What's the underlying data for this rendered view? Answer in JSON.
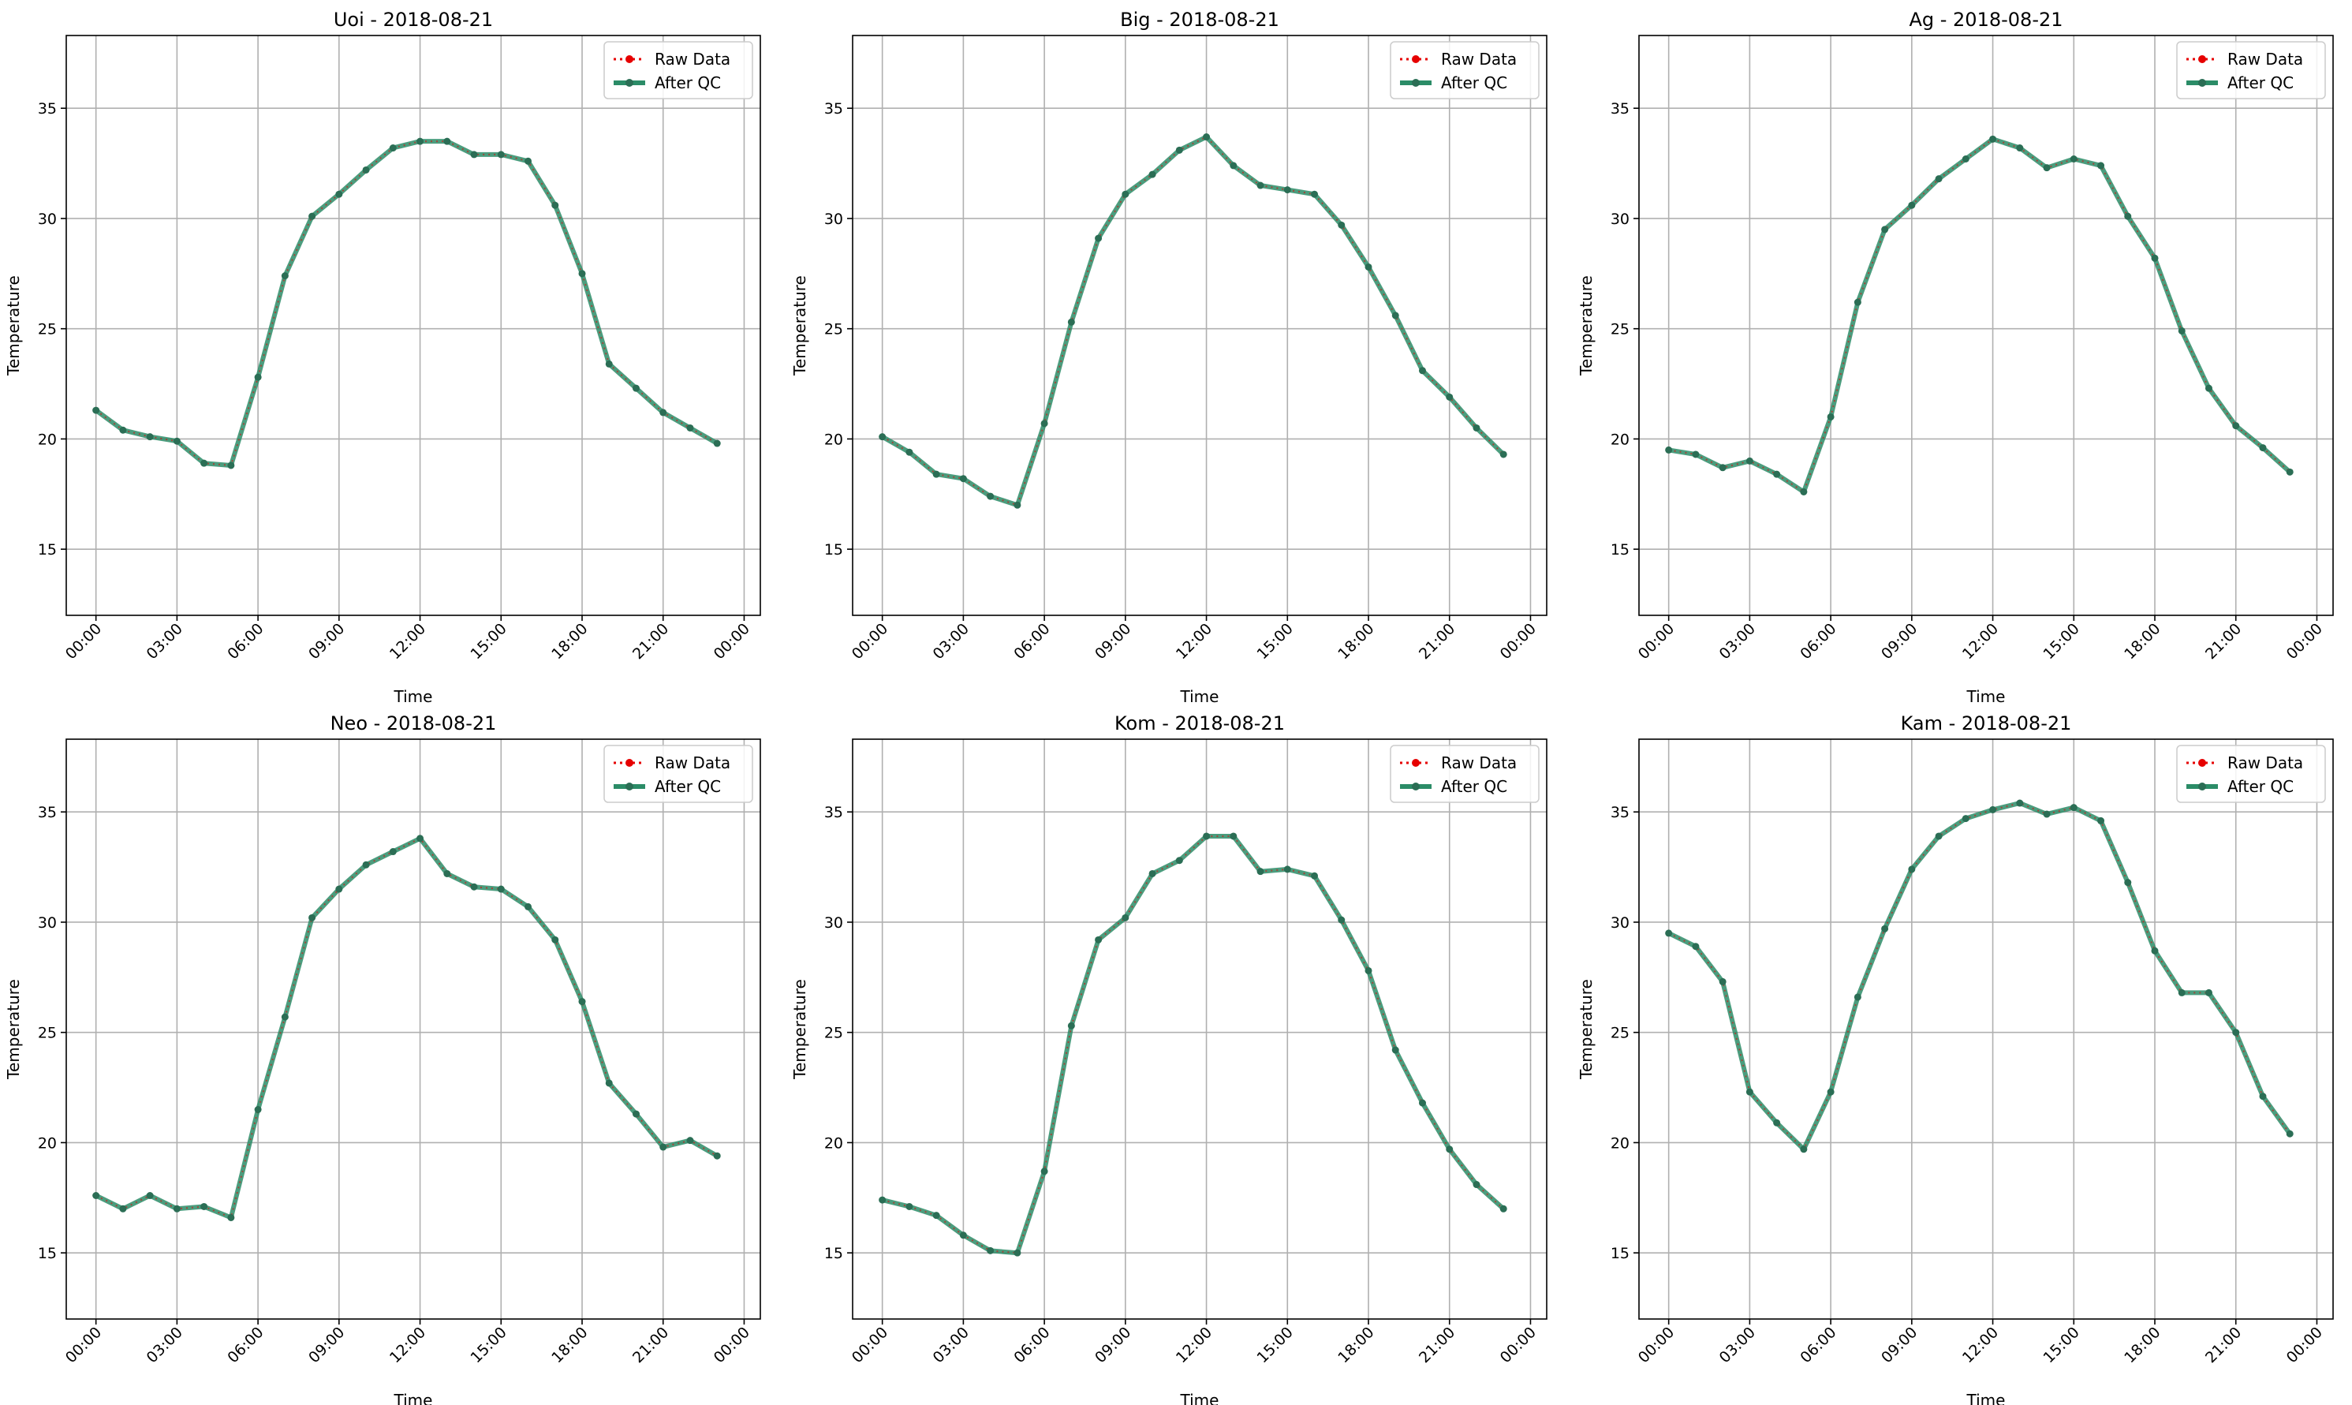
{
  "figure": {
    "background": "#ffffff"
  },
  "colors": {
    "raw": "#e60000",
    "qc": "#2b8c67",
    "qc_marker": "#2b6e55",
    "grid": "#b0b0b0"
  },
  "legend": {
    "placement": "top-right",
    "raw_label": "Raw Data",
    "qc_label": "After QC"
  },
  "chart_data": [
    {
      "type": "line",
      "title": "Uoi - 2018-08-21",
      "xlabel": "Time",
      "ylabel": "Temperature",
      "ylim": [
        12,
        38.3
      ],
      "yticks": [
        "15",
        "20",
        "25",
        "30",
        "35"
      ],
      "xticks": [
        "00:00",
        "03:00",
        "06:00",
        "09:00",
        "12:00",
        "15:00",
        "18:00",
        "21:00",
        "00:00"
      ],
      "grid": true,
      "x": [
        "00:00",
        "01:00",
        "02:00",
        "03:00",
        "04:00",
        "05:00",
        "06:00",
        "07:00",
        "08:00",
        "09:00",
        "10:00",
        "11:00",
        "12:00",
        "13:00",
        "14:00",
        "15:00",
        "16:00",
        "17:00",
        "18:00",
        "19:00",
        "20:00",
        "21:00",
        "22:00",
        "23:00"
      ],
      "series": [
        {
          "name": "Raw Data",
          "values": [
            21.3,
            20.4,
            20.1,
            19.9,
            18.9,
            18.8,
            22.8,
            27.4,
            30.1,
            31.1,
            32.2,
            33.2,
            33.5,
            33.5,
            32.9,
            32.9,
            32.6,
            30.6,
            27.5,
            23.4,
            22.3,
            21.2,
            20.5,
            19.8
          ]
        },
        {
          "name": "After QC",
          "values": [
            21.3,
            20.4,
            20.1,
            19.9,
            18.9,
            18.8,
            22.8,
            27.4,
            30.1,
            31.1,
            32.2,
            33.2,
            33.5,
            33.5,
            32.9,
            32.9,
            32.6,
            30.6,
            27.5,
            23.4,
            22.3,
            21.2,
            20.5,
            19.8
          ]
        }
      ]
    },
    {
      "type": "line",
      "title": "Big - 2018-08-21",
      "xlabel": "Time",
      "ylabel": "Temperature",
      "ylim": [
        12,
        38.3
      ],
      "yticks": [
        "15",
        "20",
        "25",
        "30",
        "35"
      ],
      "xticks": [
        "00:00",
        "03:00",
        "06:00",
        "09:00",
        "12:00",
        "15:00",
        "18:00",
        "21:00",
        "00:00"
      ],
      "grid": true,
      "x": [
        "00:00",
        "01:00",
        "02:00",
        "03:00",
        "04:00",
        "05:00",
        "06:00",
        "07:00",
        "08:00",
        "09:00",
        "10:00",
        "11:00",
        "12:00",
        "13:00",
        "14:00",
        "15:00",
        "16:00",
        "17:00",
        "18:00",
        "19:00",
        "20:00",
        "21:00",
        "22:00",
        "23:00"
      ],
      "series": [
        {
          "name": "Raw Data",
          "values": [
            20.1,
            19.4,
            18.4,
            18.2,
            17.4,
            17.0,
            20.7,
            25.3,
            29.1,
            31.1,
            32.0,
            33.1,
            33.7,
            32.4,
            31.5,
            31.3,
            31.1,
            29.7,
            27.8,
            25.6,
            23.1,
            21.9,
            20.5,
            19.3
          ]
        },
        {
          "name": "After QC",
          "values": [
            20.1,
            19.4,
            18.4,
            18.2,
            17.4,
            17.0,
            20.7,
            25.3,
            29.1,
            31.1,
            32.0,
            33.1,
            33.7,
            32.4,
            31.5,
            31.3,
            31.1,
            29.7,
            27.8,
            25.6,
            23.1,
            21.9,
            20.5,
            19.3
          ]
        }
      ]
    },
    {
      "type": "line",
      "title": "Ag - 2018-08-21",
      "xlabel": "Time",
      "ylabel": "Temperature",
      "ylim": [
        12,
        38.3
      ],
      "yticks": [
        "15",
        "20",
        "25",
        "30",
        "35"
      ],
      "xticks": [
        "00:00",
        "03:00",
        "06:00",
        "09:00",
        "12:00",
        "15:00",
        "18:00",
        "21:00",
        "00:00"
      ],
      "grid": true,
      "x": [
        "00:00",
        "01:00",
        "02:00",
        "03:00",
        "04:00",
        "05:00",
        "06:00",
        "07:00",
        "08:00",
        "09:00",
        "10:00",
        "11:00",
        "12:00",
        "13:00",
        "14:00",
        "15:00",
        "16:00",
        "17:00",
        "18:00",
        "19:00",
        "20:00",
        "21:00",
        "22:00",
        "23:00"
      ],
      "series": [
        {
          "name": "Raw Data",
          "values": [
            19.5,
            19.3,
            18.7,
            19.0,
            18.4,
            17.6,
            21.0,
            26.2,
            29.5,
            30.6,
            31.8,
            32.7,
            33.6,
            33.2,
            32.3,
            32.7,
            32.4,
            30.1,
            28.2,
            24.9,
            22.3,
            20.6,
            19.6,
            18.5
          ]
        },
        {
          "name": "After QC",
          "values": [
            19.5,
            19.3,
            18.7,
            19.0,
            18.4,
            17.6,
            21.0,
            26.2,
            29.5,
            30.6,
            31.8,
            32.7,
            33.6,
            33.2,
            32.3,
            32.7,
            32.4,
            30.1,
            28.2,
            24.9,
            22.3,
            20.6,
            19.6,
            18.5
          ]
        }
      ]
    },
    {
      "type": "line",
      "title": "Neo - 2018-08-21",
      "xlabel": "Time",
      "ylabel": "Temperature",
      "ylim": [
        12,
        38.3
      ],
      "yticks": [
        "15",
        "20",
        "25",
        "30",
        "35"
      ],
      "xticks": [
        "00:00",
        "03:00",
        "06:00",
        "09:00",
        "12:00",
        "15:00",
        "18:00",
        "21:00",
        "00:00"
      ],
      "grid": true,
      "x": [
        "00:00",
        "01:00",
        "02:00",
        "03:00",
        "04:00",
        "05:00",
        "06:00",
        "07:00",
        "08:00",
        "09:00",
        "10:00",
        "11:00",
        "12:00",
        "13:00",
        "14:00",
        "15:00",
        "16:00",
        "17:00",
        "18:00",
        "19:00",
        "20:00",
        "21:00",
        "22:00",
        "23:00"
      ],
      "series": [
        {
          "name": "Raw Data",
          "values": [
            17.6,
            17.0,
            17.6,
            17.0,
            17.1,
            16.6,
            21.5,
            25.7,
            30.2,
            31.5,
            32.6,
            33.2,
            33.8,
            32.2,
            31.6,
            31.5,
            30.7,
            29.2,
            26.4,
            22.7,
            21.3,
            19.8,
            20.1,
            19.4
          ]
        },
        {
          "name": "After QC",
          "values": [
            17.6,
            17.0,
            17.6,
            17.0,
            17.1,
            16.6,
            21.5,
            25.7,
            30.2,
            31.5,
            32.6,
            33.2,
            33.8,
            32.2,
            31.6,
            31.5,
            30.7,
            29.2,
            26.4,
            22.7,
            21.3,
            19.8,
            20.1,
            19.4
          ]
        }
      ]
    },
    {
      "type": "line",
      "title": "Kom - 2018-08-21",
      "xlabel": "Time",
      "ylabel": "Temperature",
      "ylim": [
        12,
        38.3
      ],
      "yticks": [
        "15",
        "20",
        "25",
        "30",
        "35"
      ],
      "xticks": [
        "00:00",
        "03:00",
        "06:00",
        "09:00",
        "12:00",
        "15:00",
        "18:00",
        "21:00",
        "00:00"
      ],
      "grid": true,
      "x": [
        "00:00",
        "01:00",
        "02:00",
        "03:00",
        "04:00",
        "05:00",
        "06:00",
        "07:00",
        "08:00",
        "09:00",
        "10:00",
        "11:00",
        "12:00",
        "13:00",
        "14:00",
        "15:00",
        "16:00",
        "17:00",
        "18:00",
        "19:00",
        "20:00",
        "21:00",
        "22:00",
        "23:00"
      ],
      "series": [
        {
          "name": "Raw Data",
          "values": [
            17.4,
            17.1,
            16.7,
            15.8,
            15.1,
            15.0,
            18.7,
            25.3,
            29.2,
            30.2,
            32.2,
            32.8,
            33.9,
            33.9,
            32.3,
            32.4,
            32.1,
            30.1,
            27.8,
            24.2,
            21.8,
            19.7,
            18.1,
            17.0
          ]
        },
        {
          "name": "After QC",
          "values": [
            17.4,
            17.1,
            16.7,
            15.8,
            15.1,
            15.0,
            18.7,
            25.3,
            29.2,
            30.2,
            32.2,
            32.8,
            33.9,
            33.9,
            32.3,
            32.4,
            32.1,
            30.1,
            27.8,
            24.2,
            21.8,
            19.7,
            18.1,
            17.0
          ]
        }
      ]
    },
    {
      "type": "line",
      "title": "Kam - 2018-08-21",
      "xlabel": "Time",
      "ylabel": "Temperature",
      "ylim": [
        12,
        38.3
      ],
      "yticks": [
        "15",
        "20",
        "25",
        "30",
        "35"
      ],
      "xticks": [
        "00:00",
        "03:00",
        "06:00",
        "09:00",
        "12:00",
        "15:00",
        "18:00",
        "21:00",
        "00:00"
      ],
      "grid": true,
      "x": [
        "00:00",
        "01:00",
        "02:00",
        "03:00",
        "04:00",
        "05:00",
        "06:00",
        "07:00",
        "08:00",
        "09:00",
        "10:00",
        "11:00",
        "12:00",
        "13:00",
        "14:00",
        "15:00",
        "16:00",
        "17:00",
        "18:00",
        "19:00",
        "20:00",
        "21:00",
        "22:00",
        "23:00"
      ],
      "series": [
        {
          "name": "Raw Data",
          "values": [
            29.5,
            28.9,
            27.3,
            22.3,
            20.9,
            19.7,
            22.3,
            26.6,
            29.7,
            32.4,
            33.9,
            34.7,
            35.1,
            35.4,
            34.9,
            35.2,
            34.6,
            31.8,
            28.7,
            26.8,
            26.8,
            25.0,
            22.1,
            20.4
          ]
        },
        {
          "name": "After QC",
          "values": [
            29.5,
            28.9,
            27.3,
            22.3,
            20.9,
            19.7,
            22.3,
            26.6,
            29.7,
            32.4,
            33.9,
            34.7,
            35.1,
            35.4,
            34.9,
            35.2,
            34.6,
            31.8,
            28.7,
            26.8,
            26.8,
            25.0,
            22.1,
            20.4
          ]
        }
      ]
    }
  ]
}
